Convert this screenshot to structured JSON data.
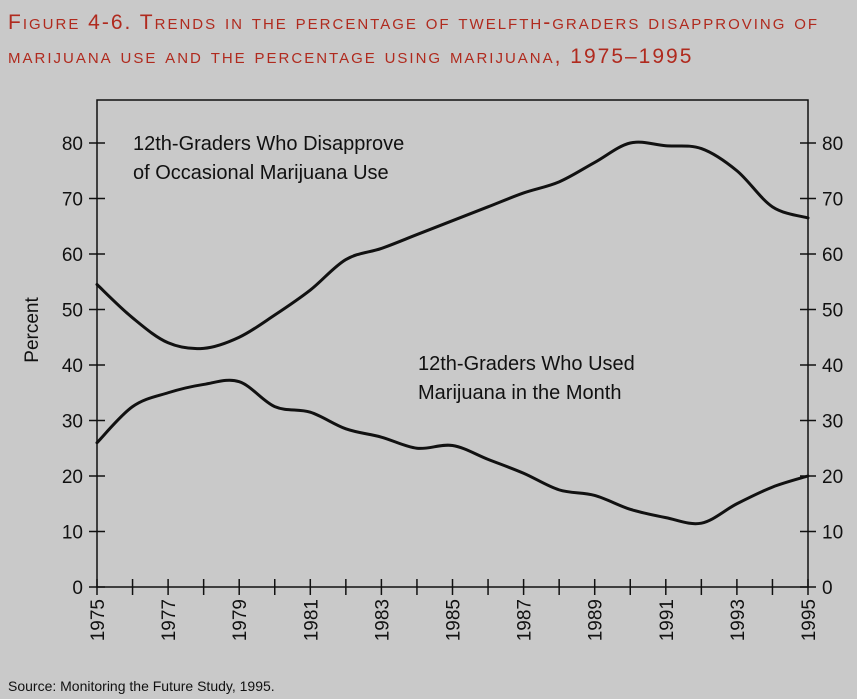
{
  "figure": {
    "title": "Figure 4-6. Trends in the percentage of twelfth-graders disapproving of marijuana use and the percentage using marijuana, 1975–1995",
    "source": "Source: Monitoring the Future Study, 1995."
  },
  "chart_data": {
    "type": "line",
    "ylabel": "Percent",
    "xlabel": "",
    "ylim": [
      0,
      85
    ],
    "xlim": [
      1975,
      1995
    ],
    "y_ticks": [
      "0",
      "10",
      "20",
      "30",
      "40",
      "50",
      "60",
      "70",
      "80"
    ],
    "x_tick_labels": [
      "1975",
      "1977",
      "1979",
      "1981",
      "1983",
      "1985",
      "1987",
      "1989",
      "1991",
      "1993",
      "1995"
    ],
    "grid": false,
    "background": "#c9c9c9",
    "line_color": "#111111",
    "series": [
      {
        "annotation": [
          "12th-Graders Who Disapprove",
          "of Occasional Marijuana Use"
        ],
        "x": [
          1975,
          1976,
          1977,
          1978,
          1979,
          1980,
          1981,
          1982,
          1983,
          1984,
          1985,
          1986,
          1987,
          1988,
          1989,
          1990,
          1991,
          1992,
          1993,
          1994,
          1995
        ],
        "values": [
          54.5,
          48.5,
          44,
          43,
          45,
          49,
          53.5,
          59,
          61,
          63.5,
          66,
          68.5,
          71,
          73,
          76.5,
          80,
          79.5,
          79,
          75,
          68.5,
          66.5
        ]
      },
      {
        "annotation": [
          "12th-Graders Who Used",
          "Marijuana in the Month"
        ],
        "x": [
          1975,
          1976,
          1977,
          1978,
          1979,
          1980,
          1981,
          1982,
          1983,
          1984,
          1985,
          1986,
          1987,
          1988,
          1989,
          1990,
          1991,
          1992,
          1993,
          1994,
          1995
        ],
        "values": [
          26,
          32.5,
          35,
          36.5,
          37,
          32.5,
          31.5,
          28.5,
          27,
          25,
          25.5,
          23,
          20.5,
          17.5,
          16.5,
          14,
          12.5,
          11.5,
          15,
          18,
          20
        ]
      }
    ]
  }
}
